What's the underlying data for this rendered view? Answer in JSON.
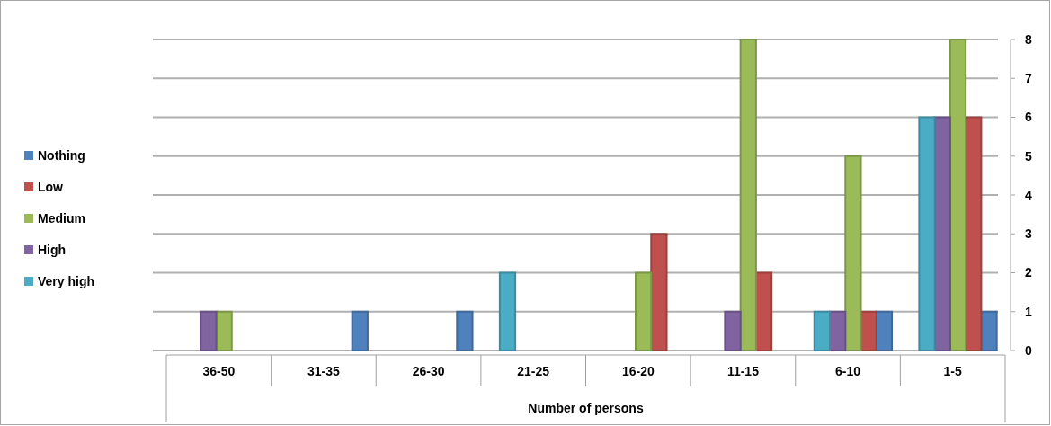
{
  "chart_data": {
    "type": "bar",
    "xlabel": "Number of persons",
    "categories": [
      "36-50",
      "31-35",
      "26-30",
      "21-25",
      "16-20",
      "11-15",
      "6-10",
      "1-5"
    ],
    "series": [
      {
        "name": "Nothing",
        "color": "#4f81bd",
        "values": [
          0,
          1,
          1,
          0,
          0,
          0,
          1,
          1
        ]
      },
      {
        "name": "Low",
        "color": "#c0504d",
        "values": [
          0,
          0,
          0,
          0,
          3,
          2,
          1,
          6
        ]
      },
      {
        "name": "Medium",
        "color": "#9bbb59",
        "values": [
          1,
          0,
          0,
          0,
          2,
          8,
          5,
          8
        ]
      },
      {
        "name": "High",
        "color": "#8064a2",
        "values": [
          1,
          0,
          0,
          0,
          0,
          1,
          1,
          6
        ]
      },
      {
        "name": "Very high",
        "color": "#4bacc6",
        "values": [
          0,
          0,
          0,
          2,
          0,
          0,
          1,
          6
        ]
      }
    ],
    "ylim": [
      0,
      8
    ],
    "yticks": [
      0,
      1,
      2,
      3,
      4,
      5,
      6,
      7,
      8
    ],
    "grid": "y",
    "legend": "left"
  }
}
